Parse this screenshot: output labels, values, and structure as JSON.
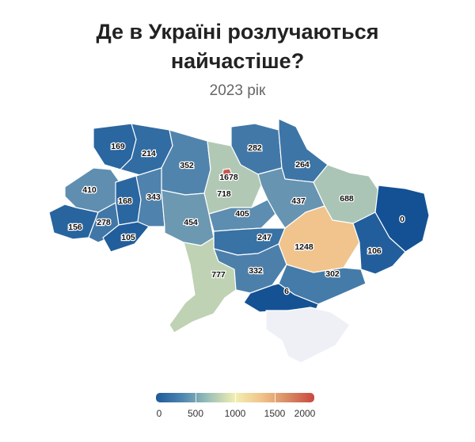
{
  "title": [
    "Де в Україні розлучаються",
    "найчастіше?"
  ],
  "subtitle": "2023 рік",
  "legend": {
    "ticks": [
      "0",
      "500",
      "1000",
      "1500",
      "2000"
    ],
    "min": 0,
    "max": 2000
  },
  "regions": [
    {
      "id": "volyn",
      "value": 169
    },
    {
      "id": "rivne",
      "value": 214
    },
    {
      "id": "zhytomyr",
      "value": 352
    },
    {
      "id": "kyiv-oblast",
      "value": 718
    },
    {
      "id": "kyiv-city",
      "value": 1678
    },
    {
      "id": "chernihiv",
      "value": 282
    },
    {
      "id": "sumy",
      "value": 264
    },
    {
      "id": "lviv",
      "value": 410
    },
    {
      "id": "ternopil",
      "value": 168
    },
    {
      "id": "khmelnytskyi",
      "value": 343
    },
    {
      "id": "vinnytsia",
      "value": 454
    },
    {
      "id": "cherkasy",
      "value": 405
    },
    {
      "id": "poltava",
      "value": 437
    },
    {
      "id": "kharkiv",
      "value": 688
    },
    {
      "id": "luhansk",
      "value": 0
    },
    {
      "id": "zakarpattia",
      "value": 156
    },
    {
      "id": "ivano-frankivsk",
      "value": 278
    },
    {
      "id": "chernivtsi",
      "value": 105
    },
    {
      "id": "kirovohrad",
      "value": 247
    },
    {
      "id": "dnipropetrovsk",
      "value": 1248
    },
    {
      "id": "donetsk",
      "value": 106
    },
    {
      "id": "odesa",
      "value": 777
    },
    {
      "id": "mykolaiv",
      "value": 332
    },
    {
      "id": "zaporizhzhia",
      "value": 302
    },
    {
      "id": "kherson",
      "value": 6
    },
    {
      "id": "crimea",
      "value": null
    }
  ],
  "colors": {
    "no_data": "#eef0f5",
    "kyiv_city": "#c8574f"
  }
}
